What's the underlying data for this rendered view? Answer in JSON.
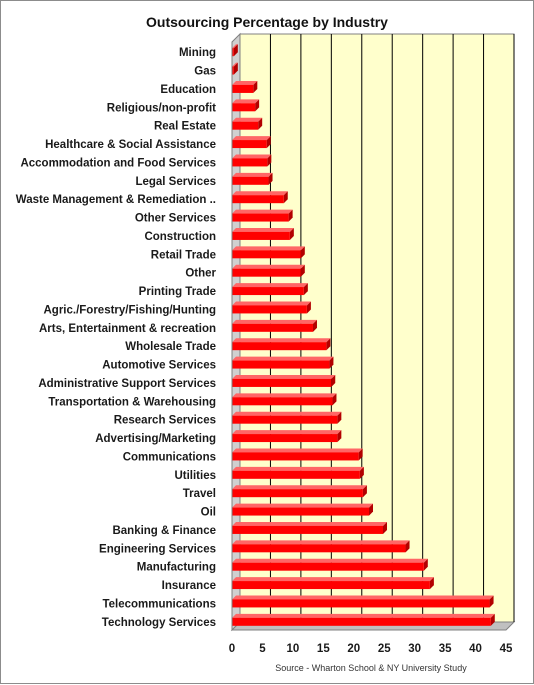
{
  "chart_data": {
    "type": "bar",
    "orientation": "horizontal",
    "title": "Outsourcing Percentage by Industry",
    "source": "Source - Wharton School & NY University Study",
    "categories": [
      "Mining",
      "Gas",
      "Education",
      "Religious/non-profit",
      "Real Estate",
      "Healthcare & Social Assistance",
      "Accommodation and Food Services",
      "Legal Services",
      "Waste Management  & Remediation ..",
      "Other Services",
      "Construction",
      "Retail Trade",
      "Other",
      "Printing Trade",
      "Agric./Forestry/Fishing/Hunting",
      "Arts, Entertainment & recreation",
      "Wholesale Trade",
      "Automotive Services",
      "Administrative Support  Services",
      "Transportation & Warehousing",
      "Research Services",
      "Advertising/Marketing",
      "Communications",
      "Utilities",
      "Travel",
      "Oil",
      "Banking & Finance",
      "Engineering Services",
      "Manufacturing",
      "Insurance",
      "Telecommunications",
      "Technology Services"
    ],
    "values": [
      0.3,
      0.3,
      3.5,
      3.8,
      4.3,
      5.7,
      5.8,
      6.0,
      8.5,
      9.3,
      9.5,
      11.3,
      11.3,
      11.8,
      12.3,
      13.3,
      15.5,
      16.0,
      16.3,
      16.5,
      17.3,
      17.3,
      20.8,
      21.0,
      21.5,
      22.5,
      24.8,
      28.5,
      31.5,
      32.5,
      42.3,
      42.5
    ],
    "xlim": [
      0,
      45
    ],
    "xticks": [
      "0",
      "5",
      "10",
      "15",
      "20",
      "25",
      "30",
      "35",
      "40",
      "45"
    ],
    "grid": true,
    "colors": {
      "bar": "#ff0000",
      "plot_background": "#ffffcc",
      "grid": "#000000"
    }
  }
}
